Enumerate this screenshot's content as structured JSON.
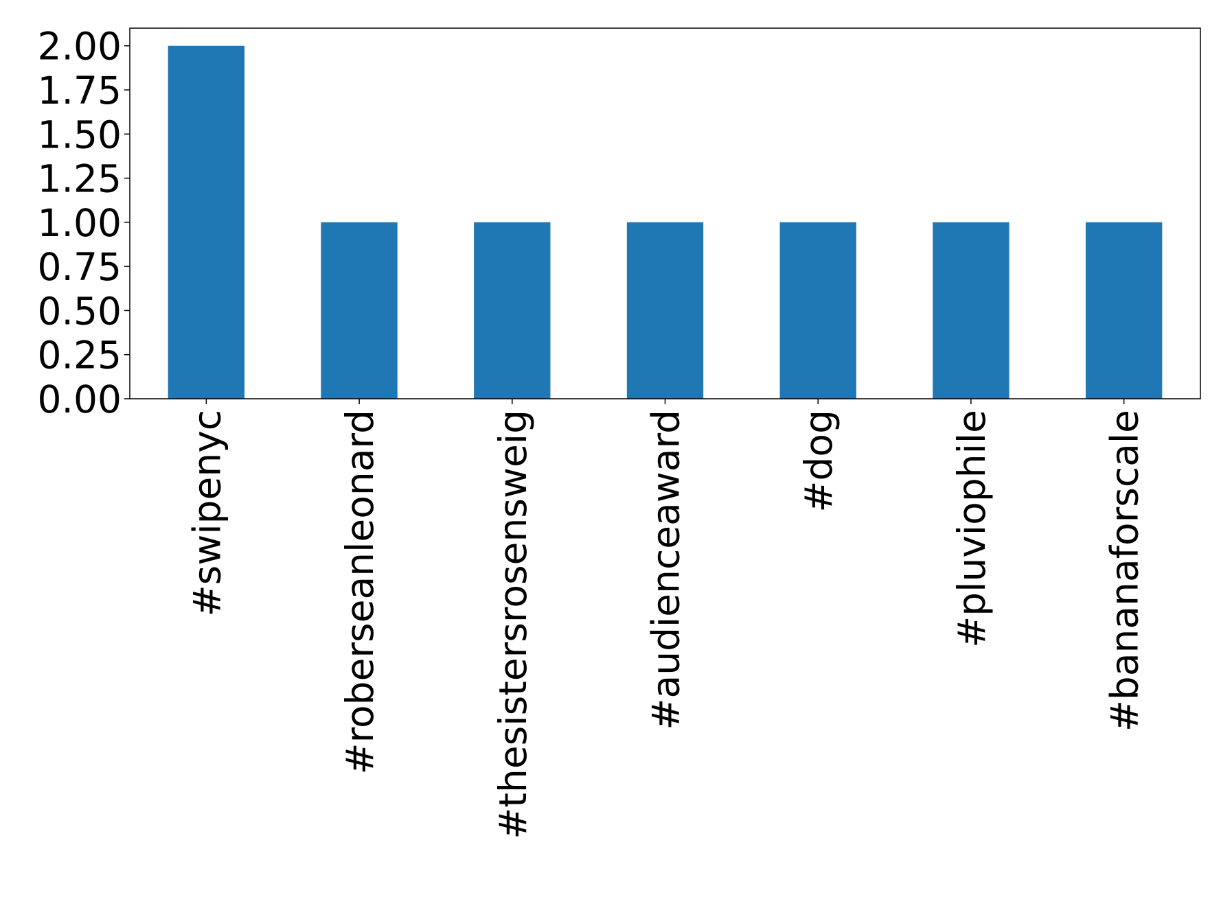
{
  "chart_data": {
    "type": "bar",
    "categories": [
      "#swipenyc",
      "#roberseanleonard",
      "#thesistersrosensweig",
      "#audienceaward",
      "#dog",
      "#pluviophile",
      "#bananaforscale"
    ],
    "values": [
      2,
      1,
      1,
      1,
      1,
      1,
      1
    ],
    "color": "#1f77b4",
    "ylim": [
      0,
      2.1
    ],
    "yticks": [
      {
        "value": 0,
        "label": "0.00"
      },
      {
        "value": 0.25,
        "label": "0.25"
      },
      {
        "value": 0.5,
        "label": "0.50"
      },
      {
        "value": 0.75,
        "label": "0.75"
      },
      {
        "value": 1,
        "label": "1.00"
      },
      {
        "value": 1.25,
        "label": "1.25"
      },
      {
        "value": 1.5,
        "label": "1.50"
      },
      {
        "value": 1.75,
        "label": "1.75"
      },
      {
        "value": 2,
        "label": "2.00"
      }
    ],
    "grid": false
  }
}
